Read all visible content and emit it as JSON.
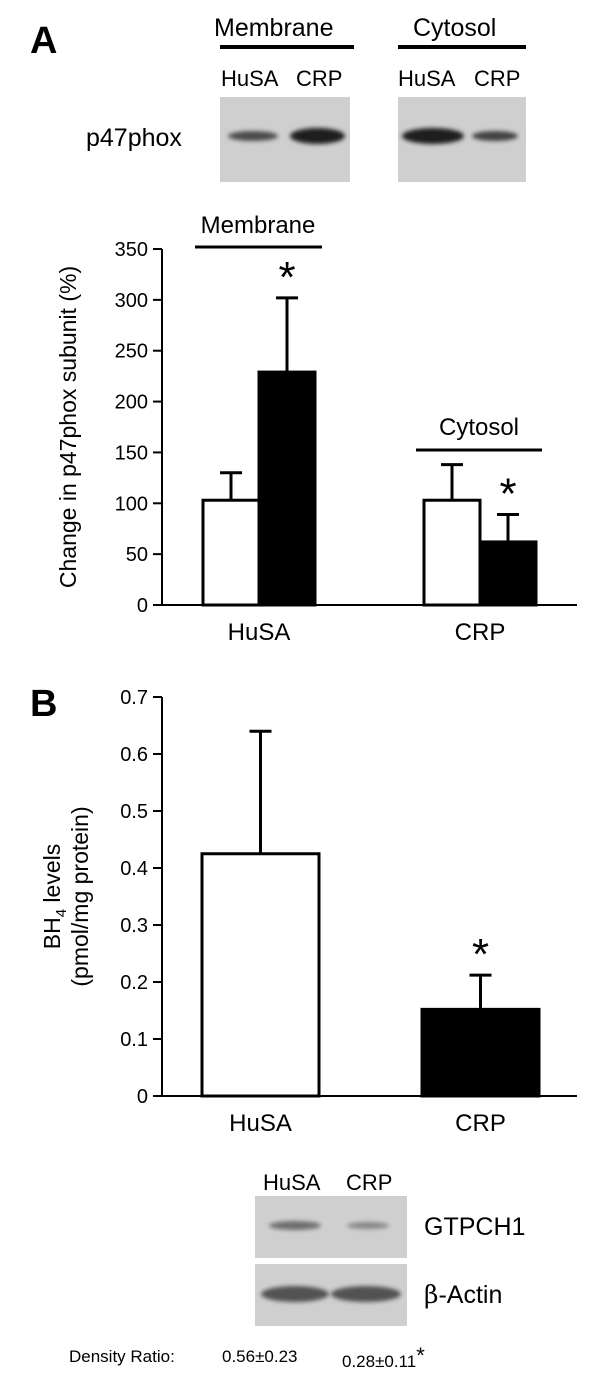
{
  "panel_a": {
    "letter": "A",
    "blot": {
      "membrane_header": "Membrane",
      "cytosol_header": "Cytosol",
      "lanes": [
        "HuSA",
        "CRP",
        "HuSA",
        "CRP"
      ],
      "protein_label": "p47phox"
    },
    "chart_data": {
      "type": "bar",
      "categories": [
        "HuSA",
        "CRP"
      ],
      "series": [
        {
          "values": [
            103,
            103
          ],
          "errors": [
            27,
            35
          ],
          "color": "#ffffff"
        },
        {
          "values": [
            229,
            62
          ],
          "errors": [
            73,
            27
          ],
          "color": "#000000"
        }
      ],
      "group_labels": [
        "Membrane",
        "Cytosol"
      ],
      "significance": [
        "*",
        "*"
      ],
      "ylabel": "Change in p47phox subunit (%)",
      "yticks": [
        0,
        50,
        100,
        150,
        200,
        250,
        300,
        350
      ],
      "ylim": [
        0,
        350
      ]
    }
  },
  "panel_b": {
    "letter": "B",
    "chart_data": {
      "type": "bar",
      "categories": [
        "HuSA",
        "CRP"
      ],
      "values": [
        0.425,
        0.152
      ],
      "errors": [
        0.215,
        0.06
      ],
      "colors": [
        "#ffffff",
        "#000000"
      ],
      "significance": [
        "",
        "*"
      ],
      "ylabel_line1": "BH",
      "ylabel_sub": "4",
      "ylabel_line1_tail": " levels",
      "ylabel_line2": "(pmol/mg protein)",
      "yticks": [
        "0",
        "0.1",
        "0.2",
        "0.3",
        "0.4",
        "0.5",
        "0.6",
        "0.7"
      ],
      "ylim": [
        0,
        0.7
      ]
    },
    "blot": {
      "lanes": [
        "HuSA",
        "CRP"
      ],
      "protein_1": "GTPCH1",
      "protein_2_prefix": "β",
      "protein_2_tail": "-Actin",
      "density_label": "Density Ratio:",
      "density_values": [
        "0.56±0.23",
        "0.28±0.11"
      ],
      "density_mark": "*"
    }
  }
}
